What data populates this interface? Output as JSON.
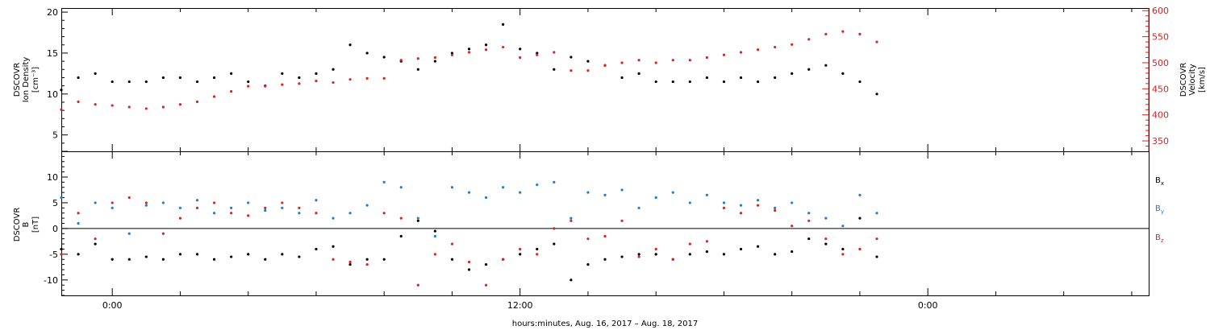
{
  "chart_data": [
    {
      "type": "scatter",
      "ylabel_left": [
        "DSCOVR",
        "Ion Density",
        "[cm⁻³]"
      ],
      "ylabel_right": [
        "DSCOVR",
        "Velocity",
        "[km/s]"
      ],
      "ylim_left": [
        3,
        20.5
      ],
      "ylim_right": [
        330,
        605
      ],
      "yticks_left": [
        "5",
        "10",
        "15",
        "20"
      ],
      "yticks_right": [
        "350",
        "400",
        "450",
        "500",
        "550",
        "600"
      ],
      "series": [
        {
          "color": "#000000",
          "axis": "left",
          "x": [
            -1.5,
            -1.0,
            -0.5,
            0.0,
            0.5,
            1.0,
            1.5,
            2.0,
            2.5,
            3.0,
            3.5,
            4.0,
            4.5,
            5.0,
            5.5,
            6.0,
            6.5,
            7.0,
            7.5,
            8.0,
            8.5,
            9.0,
            9.5,
            10.0,
            10.5,
            11.0,
            11.5,
            12.0,
            12.5,
            13.0,
            13.5,
            14.0,
            14.5,
            15.0,
            15.5,
            16.0,
            16.5,
            17.0,
            17.5,
            18.0,
            18.5,
            19.0,
            19.5,
            20.0,
            20.5,
            21.0,
            21.5,
            22.0,
            22.5
          ],
          "y": [
            10.5,
            12.0,
            12.5,
            11.5,
            11.5,
            11.5,
            12.0,
            12.0,
            11.5,
            12.0,
            12.5,
            11.5,
            11.0,
            12.5,
            12.0,
            12.5,
            13.0,
            16.0,
            15.0,
            14.5,
            14.0,
            13.0,
            14.0,
            15.0,
            15.5,
            16.0,
            18.5,
            15.5,
            15.0,
            13.0,
            14.5,
            14.0,
            13.5,
            12.0,
            12.5,
            11.5,
            11.5,
            11.5,
            12.0,
            11.5,
            12.0,
            11.5,
            12.0,
            12.5,
            13.0,
            13.5,
            12.5,
            11.5,
            10.0
          ]
        },
        {
          "color": "#dd2222",
          "axis": "right",
          "x": [
            -1.5,
            -1.0,
            -0.5,
            0.0,
            0.5,
            1.0,
            1.5,
            2.0,
            2.5,
            3.0,
            3.5,
            4.0,
            4.5,
            5.0,
            5.5,
            6.0,
            6.5,
            7.0,
            7.5,
            8.0,
            8.5,
            9.0,
            9.5,
            10.0,
            10.5,
            11.0,
            11.5,
            12.0,
            12.5,
            13.0,
            13.5,
            14.0,
            14.5,
            15.0,
            15.5,
            16.0,
            16.5,
            17.0,
            17.5,
            18.0,
            18.5,
            19.0,
            19.5,
            20.0,
            20.5,
            21.0,
            21.5,
            22.0,
            22.5
          ],
          "y": [
            410,
            425,
            420,
            418,
            415,
            412,
            415,
            420,
            425,
            435,
            445,
            455,
            455,
            458,
            460,
            465,
            462,
            468,
            470,
            470,
            505,
            508,
            510,
            515,
            520,
            525,
            530,
            510,
            515,
            520,
            485,
            485,
            495,
            500,
            505,
            500,
            505,
            505,
            510,
            515,
            520,
            525,
            530,
            535,
            545,
            555,
            560,
            555,
            540
          ]
        }
      ]
    },
    {
      "type": "scatter",
      "ylabel_left": [
        "DSCOVR",
        "B",
        "[nT]"
      ],
      "ylim": [
        -13,
        15
      ],
      "yticks": [
        "-10",
        "-5",
        "0",
        "5",
        "10"
      ],
      "zero_line": true,
      "legend": "right",
      "series": [
        {
          "name": "B",
          "sub": "x",
          "color": "#000000",
          "x": [
            -1.5,
            -1.0,
            -0.5,
            0.0,
            0.5,
            1.0,
            1.5,
            2.0,
            2.5,
            3.0,
            3.5,
            4.0,
            4.5,
            5.0,
            5.5,
            6.0,
            6.5,
            7.0,
            7.5,
            8.0,
            8.5,
            9.0,
            9.5,
            10.0,
            10.5,
            11.0,
            11.5,
            12.0,
            12.5,
            13.0,
            13.5,
            14.0,
            14.5,
            15.0,
            15.5,
            16.0,
            16.5,
            17.0,
            17.5,
            18.0,
            18.5,
            19.0,
            19.5,
            20.0,
            20.5,
            21.0,
            21.5,
            22.0,
            22.5
          ],
          "y": [
            -4.0,
            -5.0,
            -3.0,
            -6.0,
            -6.0,
            -5.5,
            -6.0,
            -5.0,
            -5.0,
            -6.0,
            -5.5,
            -5.0,
            -6.0,
            -5.0,
            -5.5,
            -4.0,
            -3.5,
            -7.0,
            -6.0,
            -6.0,
            -1.5,
            1.5,
            -0.5,
            -6.0,
            -8.0,
            -7.0,
            -6.0,
            -5.0,
            -4.0,
            -3.0,
            -10.0,
            -7.0,
            -6.0,
            -5.5,
            -5.0,
            -5.0,
            -6.0,
            -5.0,
            -4.5,
            -5.0,
            -4.0,
            -3.5,
            -5.0,
            -4.5,
            -2.0,
            -3.0,
            -4.0,
            2.0,
            -5.5
          ]
        },
        {
          "name": "B",
          "sub": "y",
          "color": "#1a7fd4",
          "x": [
            -1.5,
            -1.0,
            -0.5,
            0.0,
            0.5,
            1.0,
            1.5,
            2.0,
            2.5,
            3.0,
            3.5,
            4.0,
            4.5,
            5.0,
            5.5,
            6.0,
            6.5,
            7.0,
            7.5,
            8.0,
            8.5,
            9.0,
            9.5,
            10.0,
            10.5,
            11.0,
            11.5,
            12.0,
            12.5,
            13.0,
            13.5,
            14.0,
            14.5,
            15.0,
            15.5,
            16.0,
            16.5,
            17.0,
            17.5,
            18.0,
            18.5,
            19.0,
            19.5,
            20.0,
            20.5,
            21.0,
            21.5,
            22.0,
            22.5
          ],
          "y": [
            6.0,
            1.0,
            5.0,
            4.0,
            -1.0,
            4.5,
            5.0,
            4.0,
            5.5,
            3.0,
            4.0,
            5.0,
            3.5,
            4.0,
            3.0,
            5.5,
            2.0,
            3.0,
            4.5,
            9.0,
            8.0,
            2.0,
            -1.5,
            8.0,
            7.0,
            6.0,
            8.0,
            7.0,
            8.5,
            9.0,
            2.0,
            7.0,
            6.5,
            7.5,
            4.0,
            6.0,
            7.0,
            5.0,
            6.5,
            5.0,
            4.5,
            5.5,
            4.0,
            5.0,
            3.0,
            2.0,
            0.5,
            6.5,
            3.0
          ]
        },
        {
          "name": "B",
          "sub": "z",
          "color": "#dd2222",
          "x": [
            -1.5,
            -1.0,
            -0.5,
            0.0,
            0.5,
            1.0,
            1.5,
            2.0,
            2.5,
            3.0,
            3.5,
            4.0,
            4.5,
            5.0,
            5.5,
            6.0,
            6.5,
            7.0,
            7.5,
            8.0,
            8.5,
            9.0,
            9.5,
            10.0,
            10.5,
            11.0,
            11.5,
            12.0,
            12.5,
            13.0,
            13.5,
            14.0,
            14.5,
            15.0,
            15.5,
            16.0,
            16.5,
            17.0,
            17.5,
            18.0,
            18.5,
            19.0,
            19.5,
            20.0,
            20.5,
            21.0,
            21.5,
            22.0,
            22.5
          ],
          "y": [
            -5.0,
            3.0,
            -2.0,
            5.0,
            6.0,
            5.0,
            -1.0,
            2.0,
            4.0,
            5.0,
            3.0,
            2.5,
            4.0,
            5.0,
            4.0,
            3.0,
            -6.0,
            -6.5,
            -7.0,
            3.0,
            2.0,
            -11.0,
            -5.0,
            -3.0,
            -6.5,
            -11.0,
            -6.0,
            -4.0,
            -5.0,
            0.0,
            1.5,
            -2.0,
            -1.5,
            1.5,
            -5.5,
            -4.0,
            -6.0,
            -3.0,
            -2.5,
            4.0,
            3.0,
            4.5,
            3.5,
            0.5,
            1.5,
            -2.0,
            -5.0,
            -4.0,
            -2.0
          ]
        }
      ]
    }
  ],
  "x_axis": {
    "range_hours": [
      -1.5,
      30.5
    ],
    "major_tick_hours": [
      0,
      12,
      24
    ],
    "major_tick_labels": [
      "0:00",
      "12:00",
      "0:00"
    ],
    "minor_tick_every_hours": 2,
    "title": "hours:minutes, Aug. 16, 2017 – Aug. 18, 2017"
  }
}
